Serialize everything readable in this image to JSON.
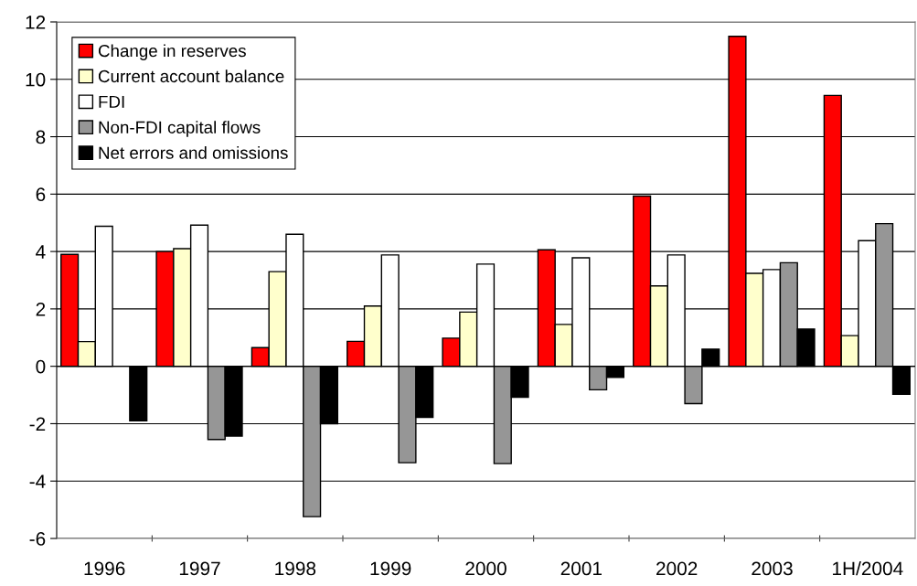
{
  "chart_data": {
    "type": "bar",
    "categories": [
      "1996",
      "1997",
      "1998",
      "1999",
      "2000",
      "2001",
      "2002",
      "2003",
      "1H/2004"
    ],
    "series": [
      {
        "name": "Change in reserves",
        "color": "#ff0000",
        "values": [
          3.9,
          4.0,
          0.65,
          0.87,
          0.98,
          4.06,
          5.93,
          11.5,
          9.44
        ]
      },
      {
        "name": "Current account balance",
        "color": "#ffffcc",
        "values": [
          0.86,
          4.1,
          3.3,
          2.1,
          1.89,
          1.46,
          2.8,
          3.24,
          1.07
        ]
      },
      {
        "name": "FDI",
        "color": "#ffffff",
        "values": [
          4.88,
          4.92,
          4.6,
          3.88,
          3.56,
          3.78,
          3.88,
          3.37,
          4.38
        ]
      },
      {
        "name": "Non-FDI capital flows",
        "color": "#969696",
        "values": [
          null,
          -2.55,
          -5.24,
          -3.36,
          -3.39,
          -0.82,
          -1.3,
          3.61,
          4.97
        ]
      },
      {
        "name": "Net errors and omissions",
        "color": "#000000",
        "values": [
          -1.9,
          -2.43,
          -2.0,
          -1.78,
          -1.08,
          -0.39,
          0.6,
          1.3,
          -0.98
        ]
      }
    ],
    "ylim": [
      -6,
      12
    ],
    "yticks": [
      -6,
      -4,
      -2,
      0,
      2,
      4,
      6,
      8,
      10,
      12
    ],
    "grid": "y",
    "legend": "top left"
  }
}
